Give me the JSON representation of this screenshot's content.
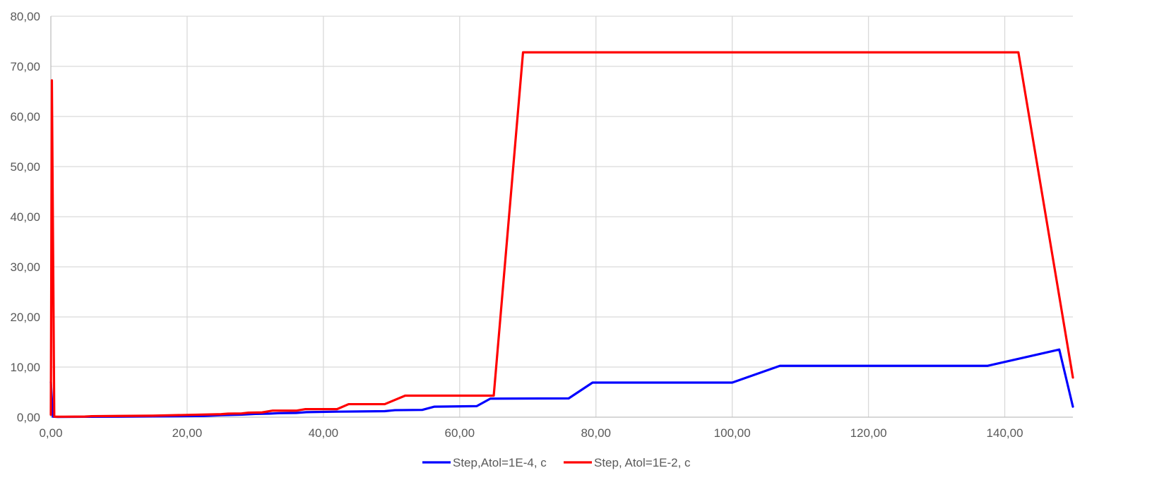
{
  "chart_data": {
    "type": "line",
    "title": "",
    "xlabel": "",
    "ylabel": "",
    "xlim": [
      0,
      150
    ],
    "ylim": [
      0,
      80
    ],
    "x_ticks": [
      0,
      20,
      40,
      60,
      80,
      100,
      120,
      140
    ],
    "x_tick_labels": [
      "0,00",
      "20,00",
      "40,00",
      "60,00",
      "80,00",
      "100,00",
      "120,00",
      "140,00"
    ],
    "y_ticks": [
      0,
      10,
      20,
      30,
      40,
      50,
      60,
      70,
      80
    ],
    "y_tick_labels": [
      "0,00",
      "10,00",
      "20,00",
      "30,00",
      "40,00",
      "50,00",
      "60,00",
      "70,00",
      "80,00"
    ],
    "grid": true,
    "legend_position": "bottom",
    "series": [
      {
        "name": "Step,Atol=1E-4, c",
        "color": "#0000ff",
        "points": [
          [
            0,
            7
          ],
          [
            0.3,
            0.1
          ],
          [
            1,
            0.05
          ],
          [
            5,
            0.08
          ],
          [
            10,
            0.1
          ],
          [
            15,
            0.15
          ],
          [
            20,
            0.2
          ],
          [
            22.5,
            0.25
          ],
          [
            25,
            0.4
          ],
          [
            28,
            0.5
          ],
          [
            30,
            0.65
          ],
          [
            32,
            0.7
          ],
          [
            33.5,
            0.8
          ],
          [
            36,
            0.85
          ],
          [
            37.5,
            1.0
          ],
          [
            42,
            1.1
          ],
          [
            49,
            1.2
          ],
          [
            50.5,
            1.4
          ],
          [
            54.5,
            1.45
          ],
          [
            56.3,
            2.1
          ],
          [
            62.5,
            2.2
          ],
          [
            64.5,
            3.7
          ],
          [
            76,
            3.75
          ],
          [
            79.5,
            6.9
          ],
          [
            100,
            6.9
          ],
          [
            107,
            10.25
          ],
          [
            137.5,
            10.25
          ],
          [
            148,
            13.5
          ],
          [
            150,
            2.1
          ]
        ]
      },
      {
        "name": "Step, Atol=1E-2, c",
        "color": "#ff0000",
        "points": [
          [
            0,
            0.5
          ],
          [
            0.15,
            67.2
          ],
          [
            0.5,
            0.1
          ],
          [
            2,
            0.1
          ],
          [
            5,
            0.12
          ],
          [
            6,
            0.2
          ],
          [
            10,
            0.25
          ],
          [
            15,
            0.3
          ],
          [
            20,
            0.45
          ],
          [
            25,
            0.6
          ],
          [
            26,
            0.7
          ],
          [
            28,
            0.75
          ],
          [
            29,
            0.9
          ],
          [
            31,
            0.95
          ],
          [
            32.5,
            1.3
          ],
          [
            36,
            1.3
          ],
          [
            37.3,
            1.6
          ],
          [
            42,
            1.6
          ],
          [
            43.7,
            2.6
          ],
          [
            49,
            2.6
          ],
          [
            52,
            4.3
          ],
          [
            65,
            4.3
          ],
          [
            69.3,
            72.8
          ],
          [
            142,
            72.8
          ],
          [
            150,
            7.9
          ]
        ]
      }
    ]
  }
}
